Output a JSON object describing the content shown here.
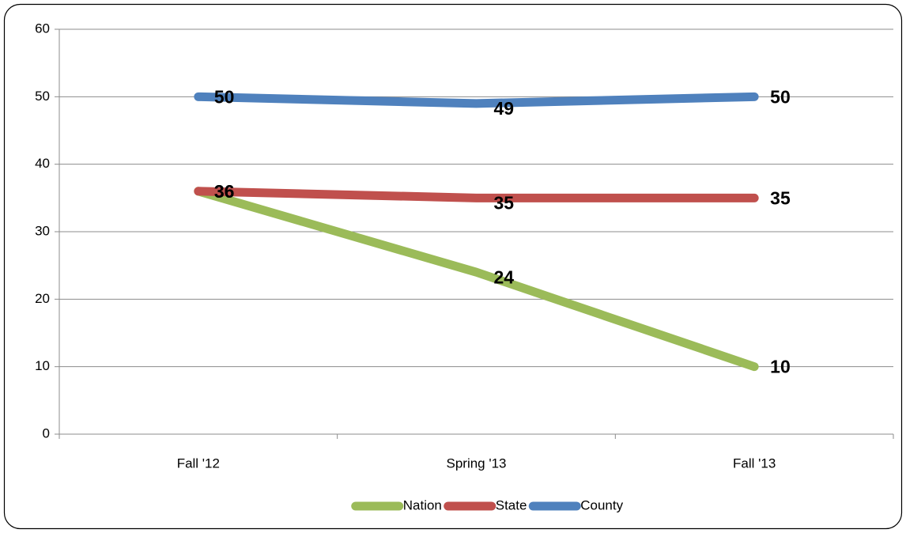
{
  "chart_data": {
    "type": "line",
    "categories": [
      "Fall '12",
      "Spring '13",
      "Fall '13"
    ],
    "series": [
      {
        "name": "Nation",
        "color": "#9bbb59",
        "values": [
          36,
          24,
          10
        ]
      },
      {
        "name": "State",
        "color": "#c0504d",
        "values": [
          36,
          35,
          35
        ]
      },
      {
        "name": "County",
        "color": "#4f81bd",
        "values": [
          50,
          49,
          50
        ]
      }
    ],
    "ylim": [
      0,
      60
    ],
    "yticks": [
      0,
      10,
      20,
      30,
      40,
      50,
      60
    ],
    "grid": true,
    "legend": "bottom"
  }
}
